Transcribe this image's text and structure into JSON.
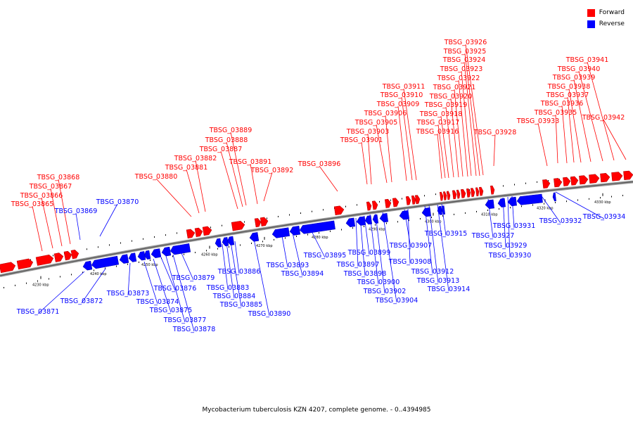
{
  "legend": {
    "forward": {
      "label": "Forward",
      "color": "#ff0000"
    },
    "reverse": {
      "label": "Reverse",
      "color": "#0000ff"
    }
  },
  "caption": "Mycobacterium tuberculosis KZN 4207, complete genome. - 0..4394985",
  "ruler_ticks": [
    "4230 kbp",
    "4240 kbp",
    "4250 kbp",
    "4260 kbp",
    "4270 kbp",
    "4280 kbp",
    "4290 kbp",
    "4300 kbp",
    "4310 kbp",
    "4320 kbp",
    "4330 kbp"
  ],
  "forward_genes": [
    "TBSG_03865",
    "TBSG_03866",
    "TBSG_03867",
    "TBSG_03868",
    "TBSG_03880",
    "TBSG_03881",
    "TBSG_03882",
    "TBSG_03887",
    "TBSG_03888",
    "TBSG_03889",
    "TBSG_03891",
    "TBSG_03892",
    "TBSG_03896",
    "TBSG_03901",
    "TBSG_03903",
    "TBSG_03905",
    "TBSG_03906",
    "TBSG_03909",
    "TBSG_03910",
    "TBSG_03911",
    "TBSG_03916",
    "TBSG_03917",
    "TBSG_03918",
    "TBSG_03919",
    "TBSG_03920",
    "TBSG_03921",
    "TBSG_03922",
    "TBSG_03923",
    "TBSG_03924",
    "TBSG_03925",
    "TBSG_03926",
    "TBSG_03928",
    "TBSG_03933",
    "TBSG_03935",
    "TBSG_03936",
    "TBSG_03937",
    "TBSG_03938",
    "TBSG_03939",
    "TBSG_03940",
    "TBSG_03941",
    "TBSG_03942"
  ],
  "reverse_genes": [
    "TBSG_03869",
    "TBSG_03870",
    "TBSG_03871",
    "TBSG_03872",
    "TBSG_03873",
    "TBSG_03874",
    "TBSG_03875",
    "TBSG_03876",
    "TBSG_03877",
    "TBSG_03878",
    "TBSG_03879",
    "TBSG_03883",
    "TBSG_03884",
    "TBSG_03885",
    "TBSG_03886",
    "TBSG_03890",
    "TBSG_03893",
    "TBSG_03894",
    "TBSG_03895",
    "TBSG_03897",
    "TBSG_03898",
    "TBSG_03899",
    "TBSG_03900",
    "TBSG_03902",
    "TBSG_03904",
    "TBSG_03907",
    "TBSG_03908",
    "TBSG_03912",
    "TBSG_03913",
    "TBSG_03914",
    "TBSG_03915",
    "TBSG_03927",
    "TBSG_03929",
    "TBSG_03930",
    "TBSG_03931",
    "TBSG_03932",
    "TBSG_03934"
  ]
}
